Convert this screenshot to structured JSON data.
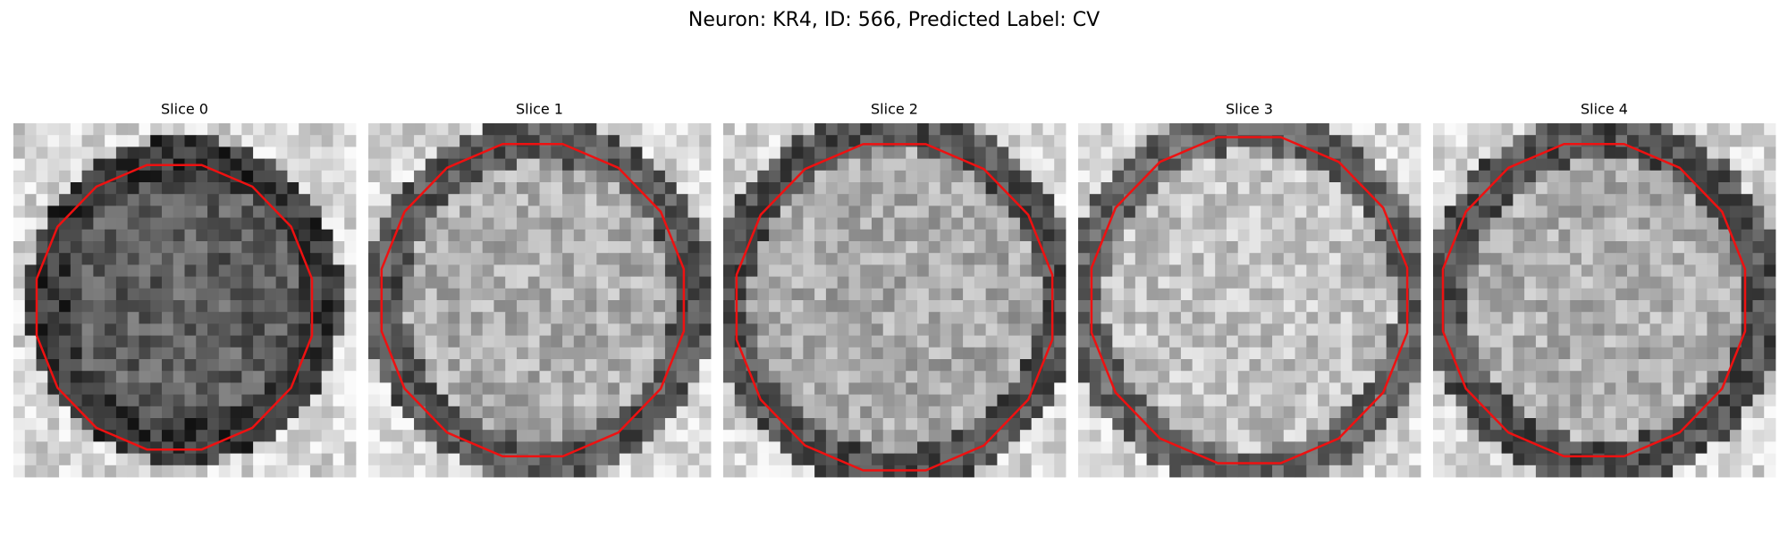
{
  "title": "Neuron: KR4, ID: 566, Predicted Label: CV",
  "panels": [
    {
      "title": "Slice 0"
    },
    {
      "title": "Slice 1"
    },
    {
      "title": "Slice 2"
    },
    {
      "title": "Slice 3"
    },
    {
      "title": "Slice 4"
    }
  ]
}
